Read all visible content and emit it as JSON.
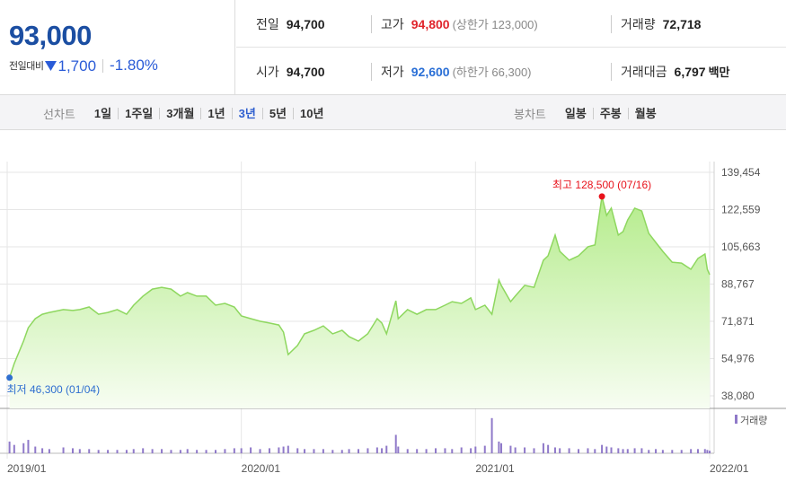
{
  "header": {
    "price": "93,000",
    "change_label": "전일대비",
    "change": "1,700",
    "change_rate": "-1.80%"
  },
  "summary": {
    "rows": [
      [
        {
          "label": "전일",
          "value": "94,700"
        },
        {
          "label": "고가",
          "value": "94,800",
          "color": "#e0242c",
          "note": "(상한가 123,000)"
        },
        {
          "label": "거래량",
          "value": "72,718"
        }
      ],
      [
        {
          "label": "시가",
          "value": "94,700"
        },
        {
          "label": "저가",
          "value": "92,600",
          "color": "#2a6fd6",
          "note": "(하한가 66,300)"
        },
        {
          "label": "거래대금",
          "value": "6,797",
          "unit": "백만"
        }
      ]
    ]
  },
  "tabs": {
    "line_label": "선차트",
    "line_periods": [
      "1일",
      "1주일",
      "3개월",
      "1년",
      "3년",
      "5년",
      "10년"
    ],
    "active_index": 4,
    "candle_label": "봉차트",
    "candle_periods": [
      "일봉",
      "주봉",
      "월봉"
    ]
  },
  "chart_data": {
    "type": "area",
    "color": "#8ed75f",
    "x": [
      2019.01,
      2019.03,
      2019.07,
      2019.09,
      2019.12,
      2019.15,
      2019.18,
      2019.24,
      2019.28,
      2019.31,
      2019.35,
      2019.39,
      2019.43,
      2019.47,
      2019.51,
      2019.54,
      2019.58,
      2019.62,
      2019.66,
      2019.7,
      2019.74,
      2019.77,
      2019.81,
      2019.85,
      2019.89,
      2019.93,
      2019.97,
      2020.0,
      2020.04,
      2020.08,
      2020.12,
      2020.16,
      2020.18,
      2020.2,
      2020.24,
      2020.27,
      2020.31,
      2020.35,
      2020.39,
      2020.43,
      2020.46,
      2020.5,
      2020.54,
      2020.58,
      2020.6,
      2020.62,
      2020.66,
      2020.67,
      2020.71,
      2020.75,
      2020.79,
      2020.83,
      2020.87,
      2020.9,
      2020.94,
      2020.98,
      2021.0,
      2021.04,
      2021.07,
      2021.1,
      2021.11,
      2021.15,
      2021.17,
      2021.21,
      2021.25,
      2021.29,
      2021.31,
      2021.34,
      2021.36,
      2021.4,
      2021.44,
      2021.48,
      2021.51,
      2021.54,
      2021.56,
      2021.58,
      2021.61,
      2021.63,
      2021.65,
      2021.68,
      2021.71,
      2021.74,
      2021.77,
      2021.8,
      2021.84,
      2021.88,
      2021.92,
      2021.95,
      2021.98,
      2021.99,
      2022.0
    ],
    "values": [
      46300,
      52700,
      62900,
      69000,
      73100,
      75100,
      75900,
      77200,
      76800,
      77200,
      78400,
      75100,
      75900,
      77200,
      75100,
      79200,
      83300,
      86500,
      87300,
      86500,
      83300,
      84900,
      83300,
      83300,
      79200,
      80000,
      78400,
      74300,
      73100,
      71900,
      71100,
      70200,
      67000,
      56800,
      60900,
      66200,
      67800,
      69800,
      66200,
      67800,
      64900,
      62900,
      66200,
      73100,
      71100,
      66200,
      81200,
      73100,
      77200,
      75100,
      77200,
      77200,
      79200,
      80800,
      80000,
      82500,
      77200,
      79200,
      75100,
      90600,
      88200,
      80800,
      83300,
      88200,
      87300,
      99600,
      101600,
      111000,
      103600,
      99600,
      101600,
      105700,
      106500,
      128500,
      119900,
      123200,
      111000,
      112600,
      117900,
      123200,
      121900,
      111800,
      107700,
      103600,
      98700,
      98300,
      95500,
      100400,
      102400,
      95500,
      93000
    ],
    "xlim": [
      2019,
      2022
    ],
    "xticks": [
      {
        "value": 2019,
        "label": "2019/01"
      },
      {
        "value": 2020,
        "label": "2020/01"
      },
      {
        "value": 2021,
        "label": "2021/01"
      },
      {
        "value": 2022,
        "label": "2022/01"
      }
    ],
    "ylim": [
      38080,
      139454
    ],
    "yticks": [
      {
        "value": 38080,
        "label": "38,080"
      },
      {
        "value": 54976,
        "label": "54,976"
      },
      {
        "value": 71871,
        "label": "71,871"
      },
      {
        "value": 88767,
        "label": "88,767"
      },
      {
        "value": 105663,
        "label": "105,663"
      },
      {
        "value": 122559,
        "label": "122,559"
      },
      {
        "value": 139454,
        "label": "139,454"
      }
    ],
    "grid": true,
    "annotations": [
      {
        "text": "최고 128,500 (07/16)",
        "x": 2021.54,
        "y": 128500,
        "color": "#e8121b",
        "position": "above"
      },
      {
        "text": "최저 46,300 (01/04)",
        "x": 2019.01,
        "y": 46300,
        "color": "#2f6fd0",
        "position": "below"
      }
    ],
    "volume": {
      "type": "bar",
      "name": "거래량",
      "color": "#8f79c9",
      "ylim": [
        0,
        45
      ],
      "values": [
        14,
        10,
        12,
        16,
        8,
        6,
        5,
        7,
        6,
        5,
        5,
        4,
        4,
        4,
        4,
        5,
        6,
        5,
        5,
        4,
        4,
        5,
        4,
        4,
        4,
        5,
        6,
        6,
        7,
        5,
        6,
        7,
        8,
        9,
        6,
        5,
        5,
        5,
        4,
        4,
        5,
        5,
        6,
        7,
        6,
        9,
        22,
        8,
        5,
        5,
        5,
        6,
        6,
        5,
        7,
        6,
        8,
        9,
        42,
        14,
        12,
        9,
        7,
        7,
        6,
        12,
        10,
        7,
        6,
        6,
        5,
        6,
        5,
        10,
        8,
        7,
        6,
        5,
        5,
        6,
        6,
        4,
        5,
        4,
        4,
        4,
        5,
        5,
        5,
        4,
        3
      ]
    }
  }
}
